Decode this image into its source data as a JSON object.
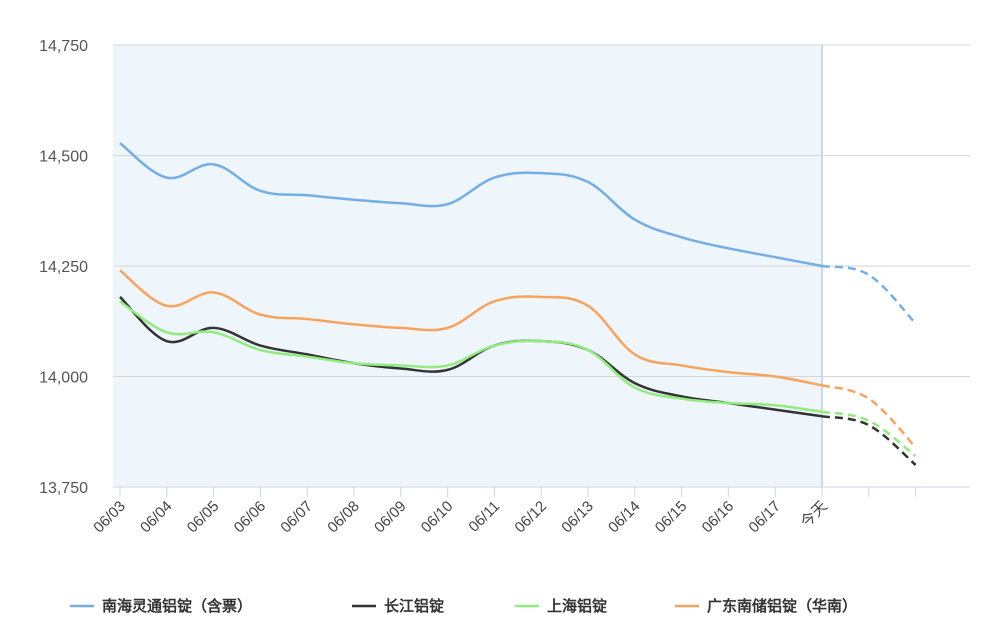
{
  "chart_data": {
    "type": "line",
    "categories": [
      "06/03",
      "06/04",
      "06/05",
      "06/06",
      "06/07",
      "06/08",
      "06/09",
      "06/10",
      "06/11",
      "06/12",
      "06/13",
      "06/14",
      "06/15",
      "06/16",
      "06/17",
      "今天",
      null,
      null
    ],
    "today_index": 15,
    "series": [
      {
        "name": "南海灵通铝锭（含票）",
        "color": "#74aee6",
        "values": [
          14528,
          14450,
          14480,
          14420,
          14410,
          14400,
          14392,
          14390,
          14450,
          14460,
          14440,
          14355,
          14315,
          14290,
          14270,
          14250,
          14230,
          14120
        ]
      },
      {
        "name": "长江铝锭",
        "color": "#333333",
        "values": [
          14180,
          14080,
          14110,
          14070,
          14050,
          14030,
          14018,
          14015,
          14070,
          14080,
          14060,
          13985,
          13955,
          13940,
          13925,
          13910,
          13890,
          13800
        ]
      },
      {
        "name": "上海铝锭",
        "color": "#90ed7d",
        "values": [
          14170,
          14100,
          14100,
          14060,
          14045,
          14030,
          14025,
          14025,
          14070,
          14080,
          14060,
          13975,
          13950,
          13940,
          13935,
          13920,
          13900,
          13820
        ]
      },
      {
        "name": "广东南储铝锭（华南）",
        "color": "#f7a35c",
        "values": [
          14240,
          14160,
          14190,
          14140,
          14130,
          14118,
          14110,
          14110,
          14170,
          14180,
          14160,
          14050,
          14025,
          14010,
          14000,
          13980,
          13950,
          13840
        ]
      }
    ],
    "ylim": [
      13750,
      14750
    ],
    "yticks": [
      {
        "value": 13750,
        "label": "13,750"
      },
      {
        "value": 14000,
        "label": "14,000"
      },
      {
        "value": 14250,
        "label": "14,250"
      },
      {
        "value": 14500,
        "label": "14,500"
      },
      {
        "value": 14750,
        "label": "14,750"
      }
    ],
    "grid": true
  }
}
